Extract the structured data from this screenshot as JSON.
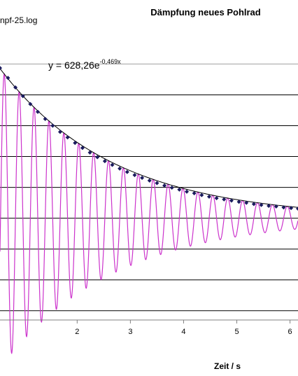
{
  "chart_data": {
    "type": "line",
    "title": "Dämpfung neues Pohlrad",
    "file_label": "npf-25.log",
    "xlabel": "Zeit / s",
    "ylabel": "",
    "x_ticks": [
      "2",
      "3",
      "4",
      "5",
      "6"
    ],
    "xlim": [
      0.55,
      6.15
    ],
    "ylim": [
      -330,
      560
    ],
    "grid": {
      "horizontal": true,
      "vertical": false
    },
    "gridlines_y": [
      500,
      400,
      300,
      200,
      100,
      0,
      -100,
      -200,
      -300
    ],
    "trendline": {
      "equation_prefix": "y = 628,26e",
      "equation_exponent": "-0,469x",
      "a": 628.26,
      "b": -0.469
    },
    "series": [
      {
        "kind": "oscillation",
        "color": "#cc33cc",
        "period": 0.28,
        "phase_peak_x": 1.75,
        "mean": 0,
        "amp_a": 628.26,
        "amp_b": -0.469,
        "x_start": 0.55,
        "x_end": 6.15
      },
      {
        "kind": "peak-markers",
        "color": "#1a1a5e",
        "x": [
          0.55,
          0.7,
          0.84,
          0.98,
          1.12,
          1.26,
          1.4,
          1.54,
          1.68,
          1.82,
          1.96,
          2.1,
          2.24,
          2.38,
          2.52,
          2.66,
          2.8,
          2.94,
          3.08,
          3.22,
          3.36,
          3.5,
          3.64,
          3.78,
          3.92,
          4.06,
          4.2,
          4.34,
          4.48,
          4.62,
          4.76,
          4.9,
          5.04,
          5.18,
          5.32,
          5.46,
          5.6,
          5.74,
          5.88,
          6.02,
          6.15
        ],
        "y": [
          487,
          455,
          424,
          396,
          370,
          345,
          322,
          300,
          280,
          262,
          244,
          228,
          213,
          198,
          185,
          173,
          161,
          150,
          140,
          131,
          122,
          114,
          106,
          99,
          93,
          86,
          81,
          75,
          70,
          65,
          61,
          57,
          53,
          50,
          46,
          43,
          40,
          38,
          35,
          33,
          31
        ]
      }
    ]
  }
}
